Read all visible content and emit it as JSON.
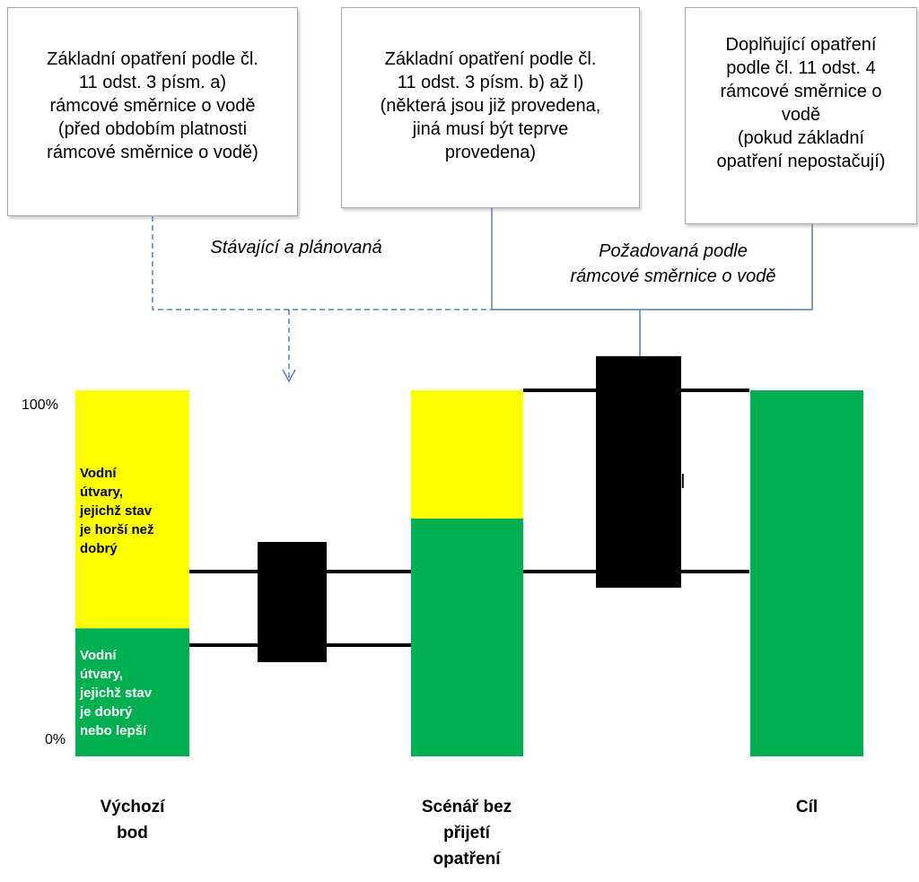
{
  "boxes": [
    {
      "text": "Základní opatření podle čl.\n11 odst. 3 písm. a)\nrámcové směrnice o vodě\n(před obdobím platnosti\nrámcové směrnice o vodě)"
    },
    {
      "text": "Základní opatření podle čl.\n11 odst. 3 písm. b) až l)\n(některá jsou již provedena,\njiná musí být teprve\nprovedena)"
    },
    {
      "text": "Doplňující opatření\npodle čl. 11 odst. 4\nrámcové směrnice o\nvodě\n(pokud základní\nopatření nepostačují)"
    }
  ],
  "captions": {
    "existing": "Stávající a plánovaná",
    "required": "Požadovaná podle\nrámcové směrnice o vodě"
  },
  "axis": {
    "top": "100%",
    "bottom": "0%"
  },
  "segments": {
    "bad": "Vodní\nútvary,\njejichž stav\nje horší než\ndobrý",
    "good": "Vodní\nútvary,\njejichž stav\nje dobrý\nnebo lepší"
  },
  "gap_label": "díl",
  "colors": {
    "yellow": "#ffff00",
    "green": "#00b050",
    "black": "#000000",
    "arrow": "#4f81bd"
  },
  "chart_data": {
    "type": "bar",
    "categories": [
      "Výchozí\nbod",
      "Scénář bez\npřijetí\nopatření",
      "Cíl"
    ],
    "series": [
      {
        "values": [
          35,
          65,
          100
        ]
      },
      {
        "values": [
          65,
          35,
          0
        ]
      }
    ],
    "ylim": [
      0,
      100
    ]
  }
}
